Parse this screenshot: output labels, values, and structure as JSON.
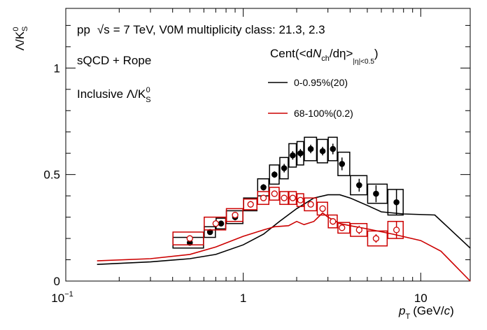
{
  "chart_data": {
    "type": "scatter",
    "title_lines": {
      "line1_prefix": "pp",
      "sqrt_s": "√s",
      "line1_suffix": "= 7 TeV, V0M multiplicity class: 21.3, 2.3",
      "line2": "sQCD + Rope",
      "line3": "Inclusive Λ/K",
      "line3_sub": "S",
      "line3_sup": "0"
    },
    "ylabel": {
      "main": "Λ/K",
      "sub": "S",
      "sup": "0"
    },
    "xlabel": {
      "p": "p",
      "sub": "T",
      "unit": "(GeV/",
      "c": "c",
      "close": ")"
    },
    "legend_header": {
      "prefix": "Cent(<d",
      "N": "N",
      "ch": "ch",
      "mid": "/dη>",
      "sub": "|η|<0.5",
      "close": ")"
    },
    "x_scale": "log",
    "xlim": [
      0.1,
      19
    ],
    "ylim": [
      0,
      1.28
    ],
    "x_ticks": [
      {
        "value": 0.1,
        "base": "10",
        "exp": "−1"
      },
      {
        "value": 1,
        "label": "1"
      },
      {
        "value": 10,
        "label": "10"
      }
    ],
    "y_ticks": [
      {
        "value": 0,
        "label": "0"
      },
      {
        "value": 0.5,
        "label": "0.5"
      },
      {
        "value": 1,
        "label": "1"
      }
    ],
    "series": [
      {
        "name": "0-0.95%(20)",
        "color": "#000000",
        "model_curve": {
          "x": [
            0.15,
            0.3,
            0.5,
            0.7,
            1.0,
            1.3,
            1.6,
            2.0,
            2.5,
            3.0,
            3.5,
            4.0,
            5.0,
            6.0,
            8.0,
            12.0,
            19.0
          ],
          "y": [
            0.078,
            0.09,
            0.105,
            0.125,
            0.17,
            0.22,
            0.28,
            0.34,
            0.39,
            0.405,
            0.405,
            0.39,
            0.355,
            0.325,
            0.315,
            0.31,
            0.155
          ]
        },
        "points": {
          "x": [
            0.5,
            0.65,
            0.75,
            0.9,
            1.1,
            1.3,
            1.5,
            1.7,
            1.9,
            2.1,
            2.4,
            2.8,
            3.2,
            3.6,
            4.5,
            5.6,
            7.3
          ],
          "y": [
            0.18,
            0.23,
            0.27,
            0.3,
            0.36,
            0.44,
            0.5,
            0.53,
            0.59,
            0.6,
            0.62,
            0.61,
            0.62,
            0.55,
            0.45,
            0.41,
            0.37
          ],
          "stat_err": [
            0.01,
            0.01,
            0.01,
            0.015,
            0.015,
            0.015,
            0.015,
            0.02,
            0.02,
            0.02,
            0.02,
            0.02,
            0.025,
            0.03,
            0.03,
            0.04,
            0.06
          ],
          "sys_err": [
            0.025,
            0.025,
            0.025,
            0.03,
            0.03,
            0.04,
            0.045,
            0.05,
            0.055,
            0.055,
            0.055,
            0.055,
            0.055,
            0.055,
            0.045,
            0.045,
            0.06
          ],
          "bin_edges": [
            [
              0.4,
              0.6
            ],
            [
              0.6,
              0.7
            ],
            [
              0.7,
              0.8
            ],
            [
              0.8,
              1.0
            ],
            [
              1.0,
              1.2
            ],
            [
              1.2,
              1.4
            ],
            [
              1.4,
              1.6
            ],
            [
              1.6,
              1.8
            ],
            [
              1.8,
              2.0
            ],
            [
              2.0,
              2.2
            ],
            [
              2.2,
              2.6
            ],
            [
              2.6,
              3.0
            ],
            [
              3.0,
              3.4
            ],
            [
              3.4,
              4.0
            ],
            [
              4.0,
              5.0
            ],
            [
              5.0,
              6.5
            ],
            [
              6.5,
              8.0
            ]
          ]
        }
      },
      {
        "name": "68-100%(0.2)",
        "color": "#cc0000",
        "model_curve": {
          "x": [
            0.15,
            0.3,
            0.5,
            0.7,
            1.0,
            1.3,
            1.5,
            1.8,
            2.0,
            2.2,
            2.5,
            2.8,
            3.0,
            3.5,
            4.0,
            5.0,
            7.0,
            10.0,
            13.0,
            19.0
          ],
          "y": [
            0.095,
            0.105,
            0.125,
            0.16,
            0.21,
            0.24,
            0.255,
            0.26,
            0.28,
            0.265,
            0.28,
            0.32,
            0.3,
            0.27,
            0.26,
            0.245,
            0.22,
            0.19,
            0.14,
            0.0
          ]
        },
        "points": {
          "x": [
            0.5,
            0.7,
            0.9,
            1.1,
            1.3,
            1.5,
            1.7,
            1.9,
            2.1,
            2.4,
            2.8,
            3.2,
            3.6,
            4.5,
            5.6,
            7.3
          ],
          "y": [
            0.2,
            0.27,
            0.31,
            0.36,
            0.39,
            0.41,
            0.39,
            0.39,
            0.38,
            0.36,
            0.34,
            0.28,
            0.25,
            0.24,
            0.2,
            0.24
          ],
          "stat_err": [
            0.01,
            0.01,
            0.01,
            0.01,
            0.01,
            0.01,
            0.01,
            0.01,
            0.01,
            0.01,
            0.015,
            0.015,
            0.015,
            0.02,
            0.02,
            0.04
          ],
          "sys_err": [
            0.03,
            0.03,
            0.03,
            0.025,
            0.03,
            0.03,
            0.03,
            0.03,
            0.03,
            0.03,
            0.03,
            0.03,
            0.025,
            0.03,
            0.035,
            0.04
          ],
          "bin_edges": [
            [
              0.4,
              0.6
            ],
            [
              0.6,
              0.8
            ],
            [
              0.8,
              1.0
            ],
            [
              1.0,
              1.2
            ],
            [
              1.2,
              1.4
            ],
            [
              1.4,
              1.6
            ],
            [
              1.6,
              1.8
            ],
            [
              1.8,
              2.0
            ],
            [
              2.0,
              2.2
            ],
            [
              2.2,
              2.6
            ],
            [
              2.6,
              3.0
            ],
            [
              3.0,
              3.4
            ],
            [
              3.4,
              4.0
            ],
            [
              4.0,
              5.0
            ],
            [
              5.0,
              6.5
            ],
            [
              6.5,
              8.0
            ]
          ]
        }
      }
    ],
    "grid": false,
    "legend_position": "top-right"
  }
}
